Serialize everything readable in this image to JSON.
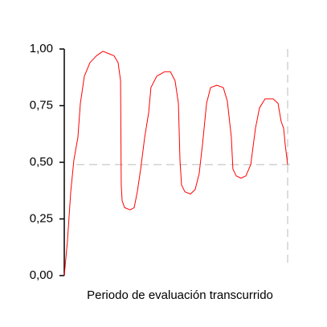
{
  "chart_data": {
    "type": "line",
    "x_label": "Periodo de evaluación transcurrido",
    "x": [
      0,
      1.4,
      2.9,
      4.3,
      6.1,
      7.2,
      9.0,
      11.5,
      14.4,
      17.3,
      19.8,
      22.3,
      24.1,
      25.2,
      25.5,
      25.9,
      27.0,
      29.5,
      31.3,
      32.7,
      34.2,
      36.0,
      37.8,
      38.8,
      41.4,
      45.0,
      47.5,
      49.6,
      51.1,
      51.8,
      52.5,
      54.0,
      56.5,
      58.6,
      60.4,
      61.9,
      63.7,
      65.5,
      68.3,
      71.2,
      73.0,
      74.8,
      75.5,
      77.0,
      79.1,
      81.3,
      83.5,
      85.6,
      87.4,
      89.9,
      93.5,
      95.7,
      97.1,
      98.2,
      98.9,
      100
    ],
    "series": [
      {
        "color": "#ff0000",
        "values": [
          0,
          0.15,
          0.37,
          0.51,
          0.61,
          0.76,
          0.88,
          0.94,
          0.97,
          0.99,
          0.98,
          0.97,
          0.94,
          0.86,
          0.4,
          0.33,
          0.3,
          0.29,
          0.3,
          0.37,
          0.47,
          0.61,
          0.72,
          0.83,
          0.88,
          0.9,
          0.9,
          0.86,
          0.76,
          0.51,
          0.4,
          0.37,
          0.36,
          0.38,
          0.45,
          0.58,
          0.76,
          0.83,
          0.84,
          0.83,
          0.77,
          0.61,
          0.47,
          0.44,
          0.43,
          0.44,
          0.49,
          0.65,
          0.74,
          0.78,
          0.78,
          0.76,
          0.68,
          0.65,
          0.58,
          0.49
        ]
      }
    ],
    "xlim": [
      0,
      100
    ],
    "ylim": [
      0,
      1
    ],
    "yticks": [
      {
        "value": 0,
        "label": "0,00"
      },
      {
        "value": 0.25,
        "label": "0,25"
      },
      {
        "value": 0.5,
        "label": "0,50"
      },
      {
        "value": 0.75,
        "label": "0,75"
      },
      {
        "value": 1,
        "label": "1,00"
      }
    ],
    "reference_line_y": 0.49,
    "reference_line_x": 100
  }
}
